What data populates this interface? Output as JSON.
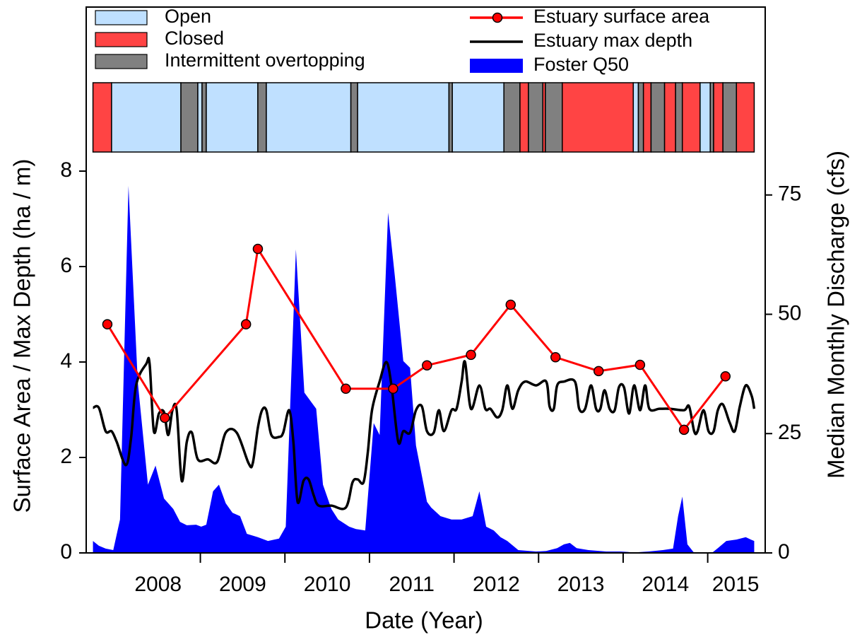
{
  "chart_data": {
    "type": "line",
    "xlabel": "Date (Year)",
    "ylabel": "Surface Area / Max Depth (ha / m)",
    "y2label": "Median Monthly Discharge (cfs)",
    "xlim": [
      2007.65,
      2015.68
    ],
    "xticks": [
      2009,
      2010,
      2011,
      2012,
      2013,
      2014,
      2015
    ],
    "xtick_labels": [
      {
        "value": 2008.5,
        "label": "2008"
      },
      {
        "value": 2009.5,
        "label": "2009"
      },
      {
        "value": 2010.5,
        "label": "2010"
      },
      {
        "value": 2011.5,
        "label": "2011"
      },
      {
        "value": 2012.5,
        "label": "2012"
      },
      {
        "value": 2013.5,
        "label": "2013"
      },
      {
        "value": 2014.5,
        "label": "2014"
      },
      {
        "value": 2015.33,
        "label": "2015"
      }
    ],
    "ylim": [
      0,
      8
    ],
    "yticks": [
      0,
      2,
      4,
      6,
      8
    ],
    "y2lim": [
      0,
      80
    ],
    "y2ticks": [
      0,
      25,
      50,
      75
    ],
    "status": {
      "names": [
        "Open",
        "Closed",
        "Intermittent overtopping"
      ],
      "colors": [
        "#bfe0ff",
        "#ff4444",
        "#808080"
      ],
      "breaks": [
        2007.73,
        2007.95,
        2008.77,
        2008.97,
        2009.02,
        2009.07,
        2009.68,
        2009.78,
        2010.78,
        2010.86,
        2011.94,
        2011.98,
        2012.59,
        2012.78,
        2012.88,
        2013.05,
        2013.08,
        2013.28,
        2014.12,
        2014.18,
        2014.24,
        2014.33,
        2014.49,
        2014.62,
        2014.7,
        2014.91,
        2015.03,
        2015.07,
        2015.18,
        2015.34,
        2015.55
      ],
      "periods": [
        "Closed",
        "Open",
        "Intermittent overtopping",
        "Open",
        "Intermittent overtopping",
        "Open",
        "Intermittent overtopping",
        "Open",
        "Intermittent overtopping",
        "Open",
        "Intermittent overtopping",
        "Open",
        "Intermittent overtopping",
        "Closed",
        "Intermittent overtopping",
        "Closed",
        "Intermittent overtopping",
        "Closed",
        "Open",
        "Intermittent overtopping",
        "Closed",
        "Intermittent overtopping",
        "Closed",
        "Intermittent overtopping",
        "Closed",
        "Open",
        "Intermittent overtopping",
        "Closed",
        "Intermittent overtopping",
        "Closed"
      ]
    },
    "series": [
      {
        "name": "Estuary surface area",
        "color": "#ff0000",
        "marker": true,
        "x": [
          2007.9,
          2008.58,
          2009.54,
          2009.68,
          2010.72,
          2011.28,
          2011.68,
          2012.2,
          2012.67,
          2013.2,
          2013.71,
          2014.2,
          2014.72,
          2015.21
        ],
        "values": [
          4.79,
          2.83,
          4.79,
          6.37,
          3.44,
          3.44,
          3.93,
          4.15,
          5.2,
          4.1,
          3.81,
          3.94,
          2.58,
          3.7
        ]
      },
      {
        "name": "Estuary max depth",
        "color": "#000000",
        "smooth": true,
        "x": [
          2007.73,
          2007.8,
          2007.88,
          2007.95,
          2008.01,
          2008.12,
          2008.18,
          2008.24,
          2008.36,
          2008.4,
          2008.45,
          2008.51,
          2008.57,
          2008.62,
          2008.67,
          2008.72,
          2008.78,
          2008.84,
          2008.9,
          2008.97,
          2009.09,
          2009.2,
          2009.3,
          2009.43,
          2009.57,
          2009.62,
          2009.68,
          2009.73,
          2009.78,
          2009.84,
          2009.93,
          2009.98,
          2010.05,
          2010.1,
          2010.15,
          2010.22,
          2010.28,
          2010.34,
          2010.4,
          2010.55,
          2010.72,
          2010.8,
          2010.86,
          2010.93,
          2010.98,
          2011.03,
          2011.12,
          2011.2,
          2011.26,
          2011.34,
          2011.4,
          2011.48,
          2011.55,
          2011.62,
          2011.68,
          2011.76,
          2011.82,
          2011.88,
          2011.97,
          2012.03,
          2012.09,
          2012.13,
          2012.2,
          2012.3,
          2012.37,
          2012.43,
          2012.51,
          2012.57,
          2012.63,
          2012.69,
          2012.76,
          2012.84,
          2012.97,
          2013.09,
          2013.13,
          2013.18,
          2013.22,
          2013.3,
          2013.43,
          2013.48,
          2013.55,
          2013.62,
          2013.68,
          2013.73,
          2013.78,
          2013.84,
          2013.9,
          2013.95,
          2014.01,
          2014.07,
          2014.13,
          2014.2,
          2014.26,
          2014.31,
          2014.43,
          2014.55,
          2014.72,
          2014.78,
          2014.84,
          2014.88,
          2014.95,
          2015.01,
          2015.07,
          2015.12,
          2015.18,
          2015.26,
          2015.32,
          2015.38,
          2015.45,
          2015.52,
          2015.55
        ],
        "values": [
          3.04,
          3.04,
          2.55,
          2.55,
          2.33,
          1.84,
          2.4,
          3.51,
          3.96,
          3.96,
          2.55,
          2.92,
          2.95,
          2.47,
          2.99,
          2.99,
          1.51,
          2.33,
          2.52,
          1.96,
          1.96,
          1.91,
          2.52,
          2.52,
          1.88,
          1.88,
          2.62,
          2.99,
          2.99,
          2.47,
          2.43,
          2.52,
          2.99,
          2.33,
          1.07,
          1.51,
          1.54,
          1.21,
          0.99,
          0.99,
          0.95,
          1.48,
          1.54,
          1.48,
          2.1,
          2.99,
          3.59,
          4.0,
          3.51,
          2.33,
          2.55,
          2.52,
          2.99,
          3.07,
          2.55,
          2.52,
          2.99,
          2.55,
          2.99,
          3.02,
          3.59,
          4.0,
          3.02,
          3.51,
          3.02,
          3.02,
          2.84,
          2.99,
          3.51,
          3.02,
          3.41,
          3.59,
          3.51,
          3.59,
          3.07,
          3.02,
          3.51,
          3.59,
          3.59,
          3.02,
          3.02,
          3.51,
          3.02,
          3.02,
          3.41,
          3.02,
          2.99,
          3.47,
          3.47,
          2.92,
          3.51,
          2.99,
          3.51,
          3.02,
          3.02,
          3.02,
          2.99,
          3.07,
          2.55,
          2.55,
          2.99,
          2.55,
          2.55,
          2.99,
          3.11,
          2.73,
          2.55,
          3.07,
          3.51,
          3.29,
          3.02
        ]
      },
      {
        "name": "Foster Q50",
        "color": "#0000ff",
        "kind": "area",
        "axis": "y2",
        "x": [
          2007.73,
          2007.8,
          2007.88,
          2007.97,
          2008.05,
          2008.15,
          2008.26,
          2008.38,
          2008.47,
          2008.57,
          2008.68,
          2008.76,
          2008.84,
          2008.95,
          2009.01,
          2009.07,
          2009.15,
          2009.22,
          2009.3,
          2009.38,
          2009.47,
          2009.55,
          2009.68,
          2009.8,
          2009.93,
          2010.01,
          2010.13,
          2010.23,
          2010.32,
          2010.37,
          2010.45,
          2010.55,
          2010.63,
          2010.76,
          2010.84,
          2010.95,
          2011.05,
          2011.12,
          2011.22,
          2011.3,
          2011.4,
          2011.48,
          2011.55,
          2011.68,
          2011.73,
          2011.84,
          2011.97,
          2012.09,
          2012.22,
          2012.3,
          2012.38,
          2012.47,
          2012.55,
          2012.63,
          2012.76,
          2012.97,
          2013.09,
          2013.22,
          2013.3,
          2013.37,
          2013.45,
          2013.59,
          2013.8,
          2013.97,
          2014.13,
          2014.3,
          2014.47,
          2014.59,
          2014.65,
          2014.7,
          2014.76,
          2014.84,
          2014.97,
          2015.05,
          2015.12,
          2015.22,
          2015.34,
          2015.45,
          2015.51,
          2015.55
        ],
        "values": [
          2.5,
          1.5,
          0.9,
          0.6,
          7.0,
          76.9,
          35.8,
          14.3,
          18.3,
          11.4,
          9.2,
          6.5,
          5.8,
          5.9,
          5.5,
          5.9,
          12.9,
          14.3,
          10.4,
          8.4,
          7.7,
          4.0,
          3.3,
          2.5,
          3.0,
          5.5,
          63.6,
          33.6,
          31.4,
          30.2,
          14.3,
          9.2,
          7.0,
          5.5,
          5.0,
          4.7,
          27.2,
          24.7,
          71.3,
          58.0,
          40.2,
          38.8,
          22.5,
          10.7,
          9.5,
          7.7,
          7.0,
          7.0,
          7.7,
          12.9,
          5.5,
          4.7,
          3.3,
          2.5,
          0.6,
          0.3,
          0.4,
          1.0,
          1.8,
          2.1,
          1.0,
          0.6,
          0.3,
          0.3,
          0.1,
          0.3,
          0.6,
          0.9,
          7.7,
          11.8,
          1.8,
          0,
          0,
          0,
          1.0,
          2.5,
          2.8,
          3.3,
          2.8,
          2.5
        ]
      }
    ]
  }
}
